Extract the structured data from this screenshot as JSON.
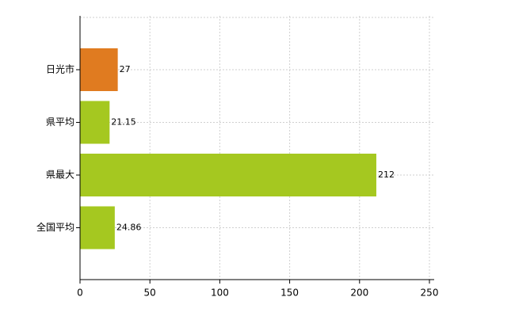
{
  "chart_data": {
    "type": "bar",
    "orientation": "horizontal",
    "categories": [
      "日光市",
      "県平均",
      "県最大",
      "全国平均"
    ],
    "values": [
      27,
      21.15,
      212,
      24.86
    ],
    "colors": [
      "#e07b20",
      "#a5c820",
      "#a5c820",
      "#a5c820"
    ],
    "xlim": [
      0,
      250
    ],
    "xticks": [
      0,
      50,
      100,
      150,
      200,
      250
    ],
    "grid": true
  }
}
